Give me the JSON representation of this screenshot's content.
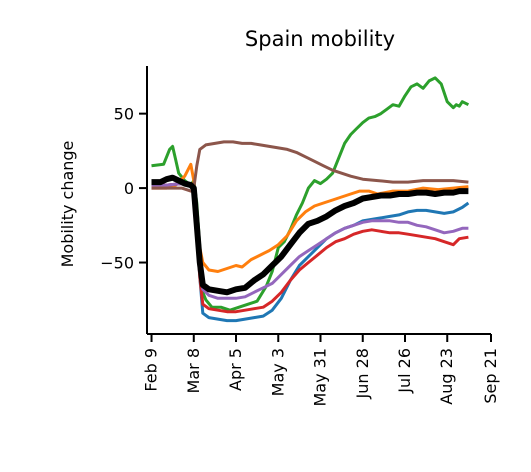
{
  "chart_data": {
    "type": "line",
    "title": "Spain mobility",
    "ylabel": "Mobility change",
    "xlabel": "",
    "xlim": [
      -3,
      225
    ],
    "ylim": [
      -98,
      82
    ],
    "x_ticks": [
      {
        "label": "Feb 9",
        "day": 0
      },
      {
        "label": "Mar 8",
        "day": 28
      },
      {
        "label": "Apr 5",
        "day": 56
      },
      {
        "label": "May 3",
        "day": 84
      },
      {
        "label": "May 31",
        "day": 112
      },
      {
        "label": "Jun 28",
        "day": 140
      },
      {
        "label": "Jul 26",
        "day": 168
      },
      {
        "label": "Aug 23",
        "day": 196
      },
      {
        "label": "Sep 21",
        "day": 225
      }
    ],
    "y_ticks": [
      {
        "label": "50",
        "value": 50
      },
      {
        "label": "0",
        "value": 0
      },
      {
        "label": "−50",
        "value": -50
      }
    ],
    "grid": false,
    "legend": "none",
    "series": [
      {
        "color": "#2ca02c",
        "width": 3,
        "x": [
          0,
          8,
          12,
          14,
          16,
          18,
          22,
          26,
          28,
          30,
          32,
          34,
          36,
          40,
          46,
          52,
          58,
          64,
          70,
          76,
          80,
          84,
          88,
          92,
          96,
          100,
          104,
          108,
          112,
          116,
          120,
          124,
          128,
          132,
          136,
          140,
          144,
          148,
          152,
          156,
          160,
          164,
          168,
          172,
          176,
          180,
          184,
          188,
          192,
          196,
          200,
          202,
          204,
          206,
          210
        ],
        "y": [
          15,
          16,
          26,
          28,
          19,
          10,
          5,
          2,
          5,
          -10,
          -40,
          -70,
          -75,
          -80,
          -80,
          -82,
          -80,
          -78,
          -76,
          -66,
          -56,
          -40,
          -36,
          -28,
          -18,
          -10,
          0,
          5,
          3,
          6,
          10,
          20,
          30,
          36,
          40,
          44,
          47,
          48,
          50,
          53,
          56,
          55,
          62,
          68,
          70,
          67,
          72,
          74,
          70,
          58,
          54,
          56,
          55,
          58,
          56
        ]
      },
      {
        "color": "#ff7f0e",
        "width": 3,
        "x": [
          0,
          10,
          16,
          22,
          26,
          28,
          30,
          32,
          34,
          38,
          44,
          50,
          56,
          60,
          66,
          72,
          78,
          84,
          90,
          96,
          102,
          108,
          114,
          120,
          126,
          132,
          138,
          144,
          150,
          160,
          170,
          180,
          190,
          200,
          210
        ],
        "y": [
          0,
          0,
          2,
          8,
          16,
          5,
          -20,
          -40,
          -50,
          -55,
          -56,
          -54,
          -52,
          -53,
          -48,
          -45,
          -42,
          -38,
          -32,
          -22,
          -16,
          -12,
          -10,
          -8,
          -6,
          -4,
          -2,
          -2,
          -4,
          -2,
          -2,
          0,
          -1,
          0,
          1
        ]
      },
      {
        "color": "#1f77b4",
        "width": 3,
        "x": [
          0,
          10,
          20,
          26,
          28,
          30,
          32,
          34,
          38,
          44,
          50,
          56,
          62,
          68,
          74,
          80,
          86,
          92,
          98,
          104,
          110,
          116,
          122,
          128,
          134,
          140,
          146,
          152,
          158,
          164,
          170,
          176,
          182,
          188,
          194,
          200,
          206,
          210
        ],
        "y": [
          2,
          2,
          3,
          2,
          0,
          -30,
          -60,
          -84,
          -87,
          -88,
          -89,
          -89,
          -88,
          -87,
          -86,
          -82,
          -74,
          -62,
          -52,
          -46,
          -40,
          -34,
          -30,
          -27,
          -25,
          -22,
          -21,
          -20,
          -19,
          -18,
          -16,
          -15,
          -15,
          -16,
          -17,
          -16,
          -13,
          -10
        ]
      },
      {
        "color": "#d62728",
        "width": 3,
        "x": [
          0,
          10,
          20,
          26,
          28,
          30,
          32,
          34,
          38,
          44,
          50,
          56,
          62,
          68,
          74,
          80,
          86,
          92,
          98,
          104,
          110,
          116,
          122,
          128,
          134,
          140,
          146,
          152,
          158,
          164,
          170,
          176,
          182,
          188,
          194,
          200,
          204,
          210
        ],
        "y": [
          2,
          2,
          3,
          2,
          0,
          -30,
          -60,
          -78,
          -81,
          -82,
          -83,
          -83,
          -82,
          -81,
          -80,
          -76,
          -70,
          -62,
          -55,
          -50,
          -45,
          -40,
          -36,
          -34,
          -31,
          -29,
          -28,
          -29,
          -30,
          -30,
          -31,
          -32,
          -33,
          -34,
          -36,
          -38,
          -34,
          -33
        ]
      },
      {
        "color": "#9467bd",
        "width": 3,
        "x": [
          0,
          10,
          20,
          26,
          28,
          30,
          32,
          34,
          38,
          44,
          50,
          56,
          62,
          68,
          74,
          80,
          86,
          92,
          98,
          104,
          110,
          116,
          122,
          128,
          134,
          140,
          146,
          152,
          158,
          164,
          170,
          176,
          182,
          188,
          194,
          200,
          206,
          210
        ],
        "y": [
          2,
          2,
          3,
          2,
          0,
          -30,
          -55,
          -68,
          -72,
          -74,
          -74,
          -74,
          -73,
          -70,
          -67,
          -64,
          -58,
          -52,
          -46,
          -42,
          -38,
          -34,
          -30,
          -27,
          -25,
          -23,
          -22,
          -22,
          -22,
          -23,
          -23,
          -25,
          -26,
          -28,
          -30,
          -29,
          -27,
          -27
        ]
      },
      {
        "color": "#8c564b",
        "width": 3,
        "x": [
          0,
          10,
          20,
          26,
          28,
          30,
          32,
          36,
          42,
          48,
          54,
          60,
          66,
          72,
          78,
          84,
          90,
          96,
          102,
          108,
          114,
          120,
          126,
          132,
          140,
          150,
          160,
          170,
          180,
          190,
          200,
          210
        ],
        "y": [
          0,
          0,
          0,
          -2,
          0,
          15,
          26,
          29,
          30,
          31,
          31,
          30,
          30,
          29,
          28,
          27,
          26,
          24,
          21,
          18,
          15,
          12,
          10,
          8,
          6,
          5,
          4,
          4,
          5,
          5,
          5,
          4
        ]
      },
      {
        "color": "#000000",
        "width": 6,
        "x": [
          0,
          6,
          10,
          14,
          18,
          22,
          26,
          28,
          30,
          32,
          34,
          38,
          44,
          50,
          56,
          62,
          68,
          74,
          80,
          86,
          92,
          98,
          104,
          110,
          116,
          122,
          128,
          134,
          140,
          146,
          152,
          158,
          164,
          170,
          176,
          182,
          188,
          194,
          200,
          204,
          210
        ],
        "y": [
          4,
          4,
          6,
          7,
          5,
          3,
          2,
          0,
          -25,
          -50,
          -65,
          -68,
          -69,
          -70,
          -68,
          -67,
          -62,
          -58,
          -52,
          -46,
          -38,
          -30,
          -24,
          -22,
          -19,
          -15,
          -12,
          -10,
          -7,
          -6,
          -5,
          -5,
          -4,
          -4,
          -3,
          -3,
          -4,
          -3,
          -3,
          -2,
          -2
        ]
      }
    ]
  }
}
